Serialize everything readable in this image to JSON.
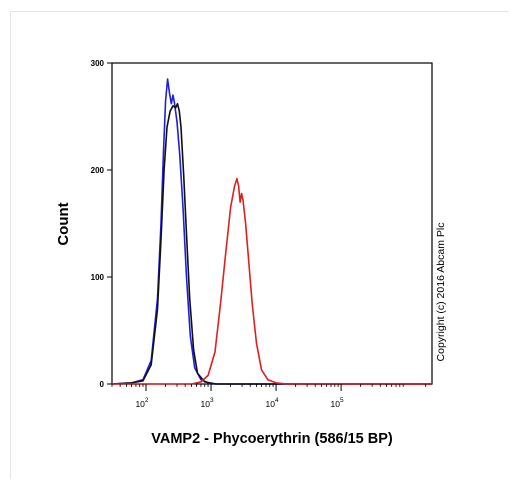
{
  "chart_data": {
    "type": "line",
    "xlabel": "VAMP2 - Phycoerythrin (586/15 BP)",
    "ylabel": "Count",
    "annotation": "Copyright (c) 2016 Abcam Plc",
    "x_scale": "log",
    "xlim": [
      30,
      2500000
    ],
    "ylim": [
      0,
      300
    ],
    "x_ticks": [
      {
        "value": 100,
        "base": "10",
        "exp": "2"
      },
      {
        "value": 1000,
        "base": "10",
        "exp": "3"
      },
      {
        "value": 10000,
        "base": "10",
        "exp": "4"
      },
      {
        "value": 100000,
        "base": "10",
        "exp": "5"
      }
    ],
    "y_ticks": [
      0,
      100,
      200,
      300
    ],
    "grid": false,
    "legend": "none",
    "series": [
      {
        "color": "#1f1fe0",
        "points": [
          [
            30,
            0
          ],
          [
            60,
            1
          ],
          [
            90,
            4
          ],
          [
            120,
            22
          ],
          [
            150,
            80
          ],
          [
            170,
            150
          ],
          [
            185,
            215
          ],
          [
            200,
            265
          ],
          [
            215,
            285
          ],
          [
            230,
            272
          ],
          [
            245,
            262
          ],
          [
            260,
            270
          ],
          [
            275,
            262
          ],
          [
            300,
            245
          ],
          [
            330,
            215
          ],
          [
            370,
            165
          ],
          [
            420,
            100
          ],
          [
            480,
            45
          ],
          [
            560,
            15
          ],
          [
            700,
            4
          ],
          [
            1000,
            0
          ],
          [
            2500000,
            0
          ]
        ]
      },
      {
        "color": "#111111",
        "points": [
          [
            30,
            0
          ],
          [
            60,
            1
          ],
          [
            90,
            3
          ],
          [
            120,
            18
          ],
          [
            150,
            70
          ],
          [
            170,
            135
          ],
          [
            190,
            200
          ],
          [
            210,
            240
          ],
          [
            235,
            255
          ],
          [
            260,
            260
          ],
          [
            285,
            258
          ],
          [
            305,
            262
          ],
          [
            325,
            255
          ],
          [
            345,
            240
          ],
          [
            380,
            195
          ],
          [
            420,
            140
          ],
          [
            470,
            80
          ],
          [
            540,
            32
          ],
          [
            620,
            10
          ],
          [
            800,
            2
          ],
          [
            1200,
            0
          ],
          [
            2500000,
            0
          ]
        ]
      },
      {
        "color": "#dd2020",
        "points": [
          [
            30,
            0
          ],
          [
            500,
            0
          ],
          [
            700,
            2
          ],
          [
            900,
            8
          ],
          [
            1150,
            30
          ],
          [
            1400,
            75
          ],
          [
            1700,
            125
          ],
          [
            2000,
            165
          ],
          [
            2300,
            185
          ],
          [
            2500,
            192
          ],
          [
            2650,
            185
          ],
          [
            2800,
            170
          ],
          [
            2950,
            178
          ],
          [
            3100,
            172
          ],
          [
            3400,
            150
          ],
          [
            3800,
            115
          ],
          [
            4300,
            75
          ],
          [
            5000,
            38
          ],
          [
            6000,
            13
          ],
          [
            7500,
            4
          ],
          [
            10000,
            1
          ],
          [
            15000,
            0
          ],
          [
            2500000,
            0
          ]
        ]
      }
    ]
  }
}
